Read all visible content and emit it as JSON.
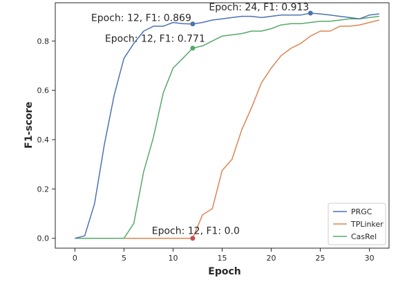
{
  "chart_data": {
    "type": "line",
    "xlabel": "Epoch",
    "ylabel": "F1-score",
    "xlim": [
      -2,
      32
    ],
    "ylim": [
      -0.04,
      0.955
    ],
    "xticks": [
      0,
      5,
      10,
      15,
      20,
      25,
      30
    ],
    "yticks": [
      0.0,
      0.2,
      0.4,
      0.6,
      0.8
    ],
    "ytick_labels": [
      "0.0",
      "0.2",
      "0.4",
      "0.6",
      "0.8"
    ],
    "grid": false,
    "legend_position": "bottom-right",
    "series": [
      {
        "name": "PRGC",
        "color": "#4c72b0",
        "x": [
          0,
          1,
          2,
          3,
          4,
          5,
          6,
          7,
          8,
          9,
          10,
          11,
          12,
          13,
          14,
          15,
          16,
          17,
          18,
          19,
          20,
          21,
          22,
          23,
          24,
          25,
          26,
          27,
          28,
          29,
          30,
          31
        ],
        "y": [
          0.0,
          0.01,
          0.14,
          0.38,
          0.58,
          0.73,
          0.79,
          0.84,
          0.86,
          0.86,
          0.875,
          0.87,
          0.869,
          0.875,
          0.885,
          0.89,
          0.895,
          0.9,
          0.9,
          0.895,
          0.9,
          0.905,
          0.905,
          0.905,
          0.913,
          0.91,
          0.905,
          0.9,
          0.895,
          0.89,
          0.905,
          0.91
        ]
      },
      {
        "name": "TPLinker",
        "color": "#dd8452",
        "x": [
          0,
          1,
          2,
          3,
          4,
          5,
          6,
          7,
          8,
          9,
          10,
          11,
          12,
          13,
          14,
          15,
          16,
          17,
          18,
          19,
          20,
          21,
          22,
          23,
          24,
          25,
          26,
          27,
          28,
          29,
          30,
          31
        ],
        "y": [
          0.0,
          0.0,
          0.0,
          0.0,
          0.0,
          0.0,
          0.0,
          0.0,
          0.0,
          0.0,
          0.0,
          0.0,
          0.0,
          0.095,
          0.12,
          0.275,
          0.32,
          0.44,
          0.53,
          0.63,
          0.69,
          0.74,
          0.77,
          0.79,
          0.82,
          0.84,
          0.84,
          0.86,
          0.86,
          0.865,
          0.875,
          0.885
        ]
      },
      {
        "name": "CasRel",
        "color": "#55a868",
        "x": [
          0,
          1,
          2,
          3,
          4,
          5,
          6,
          7,
          8,
          9,
          10,
          11,
          12,
          13,
          14,
          15,
          16,
          17,
          18,
          19,
          20,
          21,
          22,
          23,
          24,
          25,
          26,
          27,
          28,
          29,
          30,
          31
        ],
        "y": [
          0.0,
          0.0,
          0.0,
          0.0,
          0.0,
          0.0,
          0.06,
          0.27,
          0.41,
          0.59,
          0.69,
          0.73,
          0.771,
          0.78,
          0.8,
          0.82,
          0.825,
          0.83,
          0.84,
          0.84,
          0.85,
          0.865,
          0.87,
          0.87,
          0.875,
          0.88,
          0.88,
          0.885,
          0.89,
          0.89,
          0.895,
          0.9
        ]
      }
    ],
    "annotations": [
      {
        "text": "Epoch: 12, F1: 0.869",
        "x": 12,
        "y": 0.869,
        "color": "#4c72b0"
      },
      {
        "text": "Epoch: 24, F1: 0.913",
        "x": 24,
        "y": 0.913,
        "color": "#4c72b0"
      },
      {
        "text": "Epoch: 12, F1: 0.771",
        "x": 12,
        "y": 0.771,
        "color": "#55a868"
      },
      {
        "text": "Epoch: 12, F1: 0.0",
        "x": 12,
        "y": 0.0,
        "color": "#c44e52"
      }
    ]
  }
}
